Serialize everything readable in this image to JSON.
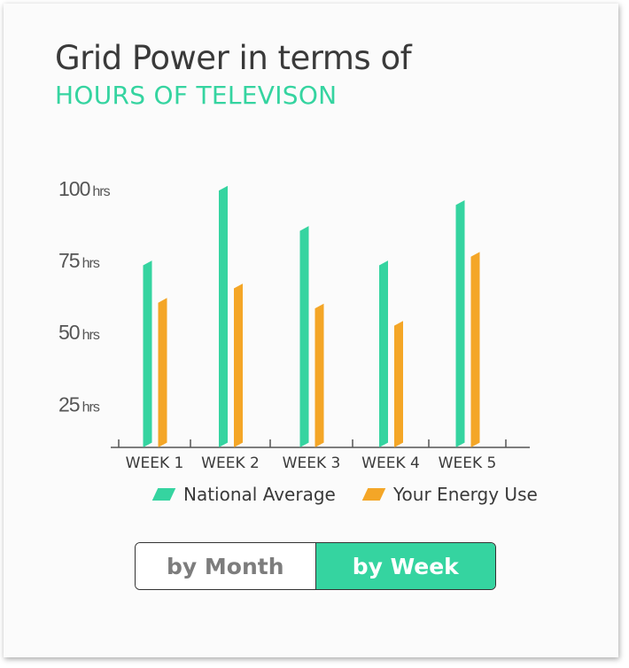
{
  "header": {
    "title": "Grid Power in terms of",
    "subtitle": "HOURS OF TELEVISON"
  },
  "colors": {
    "national": "#35d4a0",
    "yours": "#f4a627",
    "axis": "#555555",
    "text": "#3a3a3a"
  },
  "legend": {
    "national_label": "National Average",
    "yours_label": "Your Energy Use"
  },
  "toggle": {
    "month_label": "by Month",
    "week_label": "by Week",
    "selected": "by Week"
  },
  "chart_data": {
    "type": "bar",
    "title": "Grid Power in terms of",
    "subtitle": "HOURS OF TELEVISON",
    "xlabel": "",
    "ylabel": "",
    "categories": [
      "WEEK 1",
      "WEEK 2",
      "WEEK 3",
      "WEEK 4",
      "WEEK 5"
    ],
    "series": [
      {
        "name": "National Average",
        "values": [
          75,
          101,
          87,
          75,
          96
        ]
      },
      {
        "name": "Your Energy Use",
        "values": [
          62,
          67,
          60,
          54,
          78
        ]
      }
    ],
    "y_ticks": [
      {
        "value": 100,
        "num": "100",
        "unit": "hrs"
      },
      {
        "value": 75,
        "num": "75",
        "unit": "hrs"
      },
      {
        "value": 50,
        "num": "50",
        "unit": "hrs"
      },
      {
        "value": 25,
        "num": "25",
        "unit": "hrs"
      }
    ],
    "ylim": [
      10,
      100
    ],
    "grid": false,
    "legend_position": "bottom"
  }
}
